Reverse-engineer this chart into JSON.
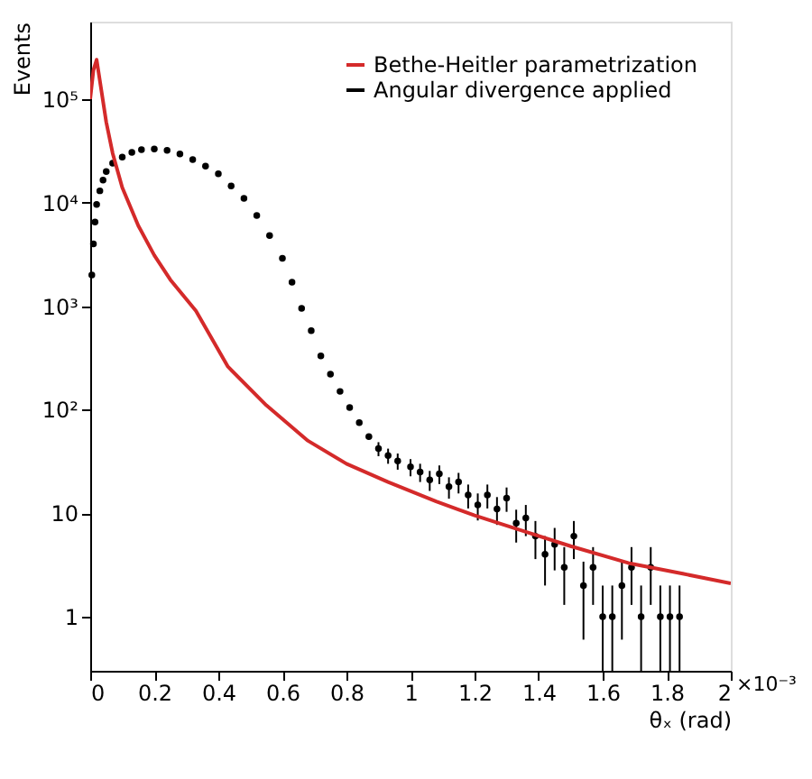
{
  "chart_data": {
    "type": "scatter",
    "xlabel": "θₓ (rad)",
    "ylabel": "Events",
    "annotations": [
      "×10⁻³"
    ],
    "xlim": [
      0,
      2
    ],
    "xticks": [
      0,
      0.2,
      0.4,
      0.6,
      0.8,
      1,
      1.2,
      1.4,
      1.6,
      1.8,
      2
    ],
    "ylim": [
      0.3,
      560000
    ],
    "log": "y",
    "yticks": [
      1,
      10,
      {
        "value": 100,
        "label": "10²"
      },
      {
        "value": 1000,
        "label": "10³"
      },
      {
        "value": 10000,
        "label": "10⁴"
      },
      {
        "value": 100000,
        "label": "10⁵"
      }
    ],
    "legend": "top right",
    "grid": false,
    "series": [
      {
        "name": "Bethe-Heitler parametrization",
        "type": "line",
        "color": "#d42a2a",
        "line_style": "solid",
        "marker": "none",
        "x": [
          0,
          0.01,
          0.02,
          0.035,
          0.05,
          0.07,
          0.1,
          0.15,
          0.2,
          0.25,
          0.33,
          0.43,
          0.55,
          0.68,
          0.8,
          0.93,
          1.08,
          1.2,
          1.36,
          1.5,
          1.68,
          1.85,
          2
        ],
        "values": [
          100000,
          190000,
          240000,
          120000,
          60000,
          30000,
          14000,
          6000,
          3100,
          1800,
          900,
          260,
          110,
          50,
          30,
          20,
          13,
          9.5,
          6.6,
          4.8,
          3.3,
          2.6,
          2.1
        ]
      },
      {
        "name": "Angular divergence applied",
        "type": "scatter",
        "color": "#000000",
        "marker": "circle",
        "x": [
          0.005,
          0.01,
          0.015,
          0.02,
          0.03,
          0.04,
          0.05,
          0.07,
          0.1,
          0.13,
          0.16,
          0.2,
          0.24,
          0.28,
          0.32,
          0.36,
          0.4,
          0.44,
          0.48,
          0.52,
          0.56,
          0.6,
          0.63,
          0.66,
          0.69,
          0.72,
          0.75,
          0.78,
          0.81,
          0.84,
          0.87,
          0.9,
          0.93,
          0.96,
          1.0,
          1.03,
          1.06,
          1.09,
          1.12,
          1.15,
          1.18,
          1.21,
          1.24,
          1.27,
          1.3,
          1.33,
          1.36,
          1.39,
          1.42,
          1.45,
          1.48,
          1.51,
          1.54,
          1.57,
          1.6,
          1.63,
          1.66,
          1.69,
          1.72,
          1.75,
          1.78,
          1.81,
          1.84
        ],
        "values": [
          2000,
          4000,
          6500,
          9600,
          13000,
          16500,
          20000,
          24000,
          27500,
          30500,
          32500,
          33000,
          32000,
          29500,
          26000,
          22500,
          19000,
          14500,
          11000,
          7500,
          4800,
          2900,
          1700,
          950,
          580,
          330,
          220,
          150,
          105,
          75,
          55,
          42,
          36,
          32,
          28,
          25,
          21,
          24,
          18,
          20,
          15,
          12,
          15,
          11,
          14,
          8,
          9,
          6,
          4,
          5,
          3,
          6,
          2,
          3,
          1,
          1,
          2,
          3,
          1,
          3,
          1,
          1,
          1
        ],
        "errors": [
          null,
          null,
          null,
          null,
          null,
          null,
          null,
          null,
          null,
          null,
          null,
          null,
          null,
          null,
          null,
          null,
          null,
          null,
          null,
          null,
          null,
          null,
          null,
          null,
          null,
          null,
          null,
          null,
          null,
          null,
          null,
          6.5,
          6,
          5.7,
          5.3,
          5,
          4.6,
          4.9,
          4.2,
          4.5,
          3.9,
          3.5,
          3.9,
          3.3,
          3.7,
          2.8,
          3,
          2.4,
          2,
          2.2,
          [
            1.3,
            4.7
          ],
          2.4,
          [
            0.6,
            3.4
          ],
          [
            1.3,
            4.7
          ],
          [
            0.3,
            2
          ],
          [
            0.3,
            2
          ],
          [
            0.6,
            3.4
          ],
          [
            1.3,
            4.7
          ],
          [
            0.3,
            2
          ],
          [
            1.3,
            4.7
          ],
          [
            0.3,
            2
          ],
          [
            0.3,
            2
          ],
          [
            0.3,
            2
          ]
        ]
      }
    ]
  }
}
